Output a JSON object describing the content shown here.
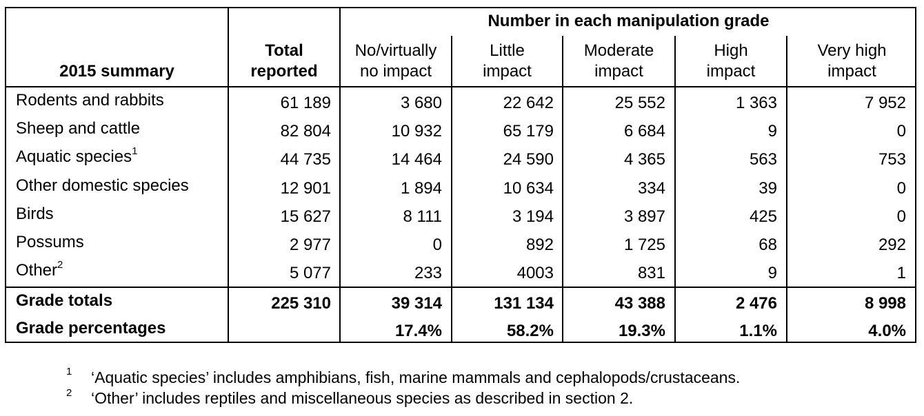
{
  "table": {
    "title": "2015 summary",
    "group_header": "Number in each manipulation grade",
    "columns": [
      {
        "line1": "Total",
        "line2": "reported"
      },
      {
        "line1": "No/virtually",
        "line2": "no impact"
      },
      {
        "line1": "Little",
        "line2": "impact"
      },
      {
        "line1": "Moderate",
        "line2": "impact"
      },
      {
        "line1": "High",
        "line2": "impact"
      },
      {
        "line1": "Very high",
        "line2": "impact"
      }
    ],
    "rows": [
      {
        "label": "Rodents and rabbits",
        "sup": "",
        "values": [
          "61 189",
          "3 680",
          "22 642",
          "25 552",
          "1 363",
          "7 952"
        ]
      },
      {
        "label": "Sheep and cattle",
        "sup": "",
        "values": [
          "82 804",
          "10 932",
          "65 179",
          "6 684",
          "9",
          "0"
        ]
      },
      {
        "label": "Aquatic species",
        "sup": "1",
        "values": [
          "44 735",
          "14 464",
          "24 590",
          "4 365",
          "563",
          "753"
        ]
      },
      {
        "label": "Other domestic species",
        "sup": "",
        "values": [
          "12 901",
          "1 894",
          "10 634",
          "334",
          "39",
          "0"
        ]
      },
      {
        "label": "Birds",
        "sup": "",
        "values": [
          "15 627",
          "8 111",
          "3 194",
          "3 897",
          "425",
          "0"
        ]
      },
      {
        "label": "Possums",
        "sup": "",
        "values": [
          "2 977",
          "0",
          "892",
          "1 725",
          "68",
          "292"
        ]
      },
      {
        "label": "Other",
        "sup": "2",
        "values": [
          "5 077",
          "233",
          "4003",
          "831",
          "9",
          "1"
        ]
      }
    ],
    "totals": {
      "label": "Grade totals",
      "values": [
        "225 310",
        "39 314",
        "131 134",
        "43 388",
        "2 476",
        "8 998"
      ]
    },
    "percentages": {
      "label": "Grade percentages",
      "values": [
        "",
        "17.4%",
        "58.2%",
        "19.3%",
        "1.1%",
        "4.0%"
      ]
    }
  },
  "footnotes": [
    {
      "mark": "1",
      "text": "‘Aquatic species’ includes amphibians, fish, marine mammals and cephalopods/crustaceans."
    },
    {
      "mark": "2",
      "text": "‘Other’ includes reptiles and miscellaneous species as described in section 2."
    }
  ]
}
